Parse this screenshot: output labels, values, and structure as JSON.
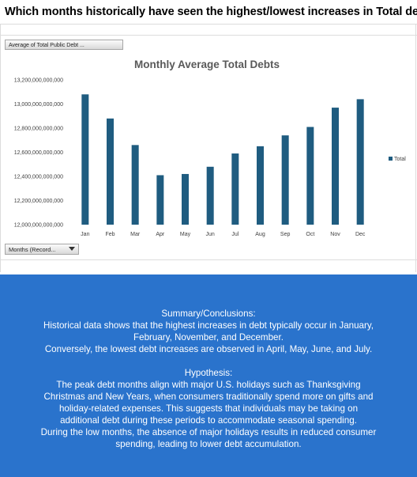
{
  "question": "Which months historically have seen the highest/lowest increases in Total debt?",
  "pivot": {
    "value_field": "Average of Total Public Debt ...",
    "axis_field": "Months (Record..."
  },
  "chart_data": {
    "type": "bar",
    "title": "Monthly Average Total Debts",
    "categories": [
      "Jan",
      "Feb",
      "Mar",
      "Apr",
      "May",
      "Jun",
      "Jul",
      "Aug",
      "Sep",
      "Oct",
      "Nov",
      "Dec"
    ],
    "series": [
      {
        "name": "Total",
        "values": [
          13080000000000,
          12880000000000,
          12660000000000,
          12410000000000,
          12420000000000,
          12480000000000,
          12590000000000,
          12650000000000,
          12740000000000,
          12810000000000,
          12970000000000,
          13040000000000
        ]
      }
    ],
    "ylim": [
      12000000000000,
      13200000000000
    ],
    "ytick_labels": [
      "13,200,000,000,000",
      "13,000,000,000,000",
      "12,800,000,000,000",
      "12,600,000,000,000",
      "12,400,000,000,000",
      "12,200,000,000,000",
      "12,000,000,000,000"
    ],
    "legend": "right",
    "bar_color": "#1f5c80"
  },
  "summary": {
    "heading": "Summary/Conclusions:",
    "line1": "Historical data shows that the highest increases in debt typically occur in January,",
    "line2": "February, November, and December.",
    "line3": "Conversely, the lowest debt increases are observed in April, May, June, and July.",
    "hyp_heading": "Hypothesis:",
    "hyp1": "The peak debt months align with major U.S. holidays such as Thanksgiving",
    "hyp2": "Christmas and New Years, when consumers traditionally spend more on gifts and",
    "hyp3": "holiday-related expenses. This suggests that individuals may be taking on",
    "hyp4": "additional debt during these periods to accommodate seasonal spending.",
    "hyp5": "During the low months, the absence of major holidays results in reduced consumer",
    "hyp6": "spending, leading to lower debt accumulation."
  }
}
